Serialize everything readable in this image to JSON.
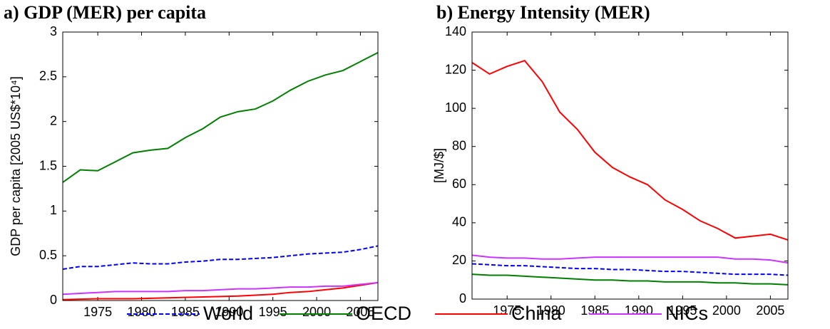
{
  "chart_data": [
    {
      "type": "line",
      "title": "a) GDP (MER) per capita",
      "ylabel": "GDP per capita [2005 US$*10⁴]",
      "x": [
        1971,
        1973,
        1975,
        1977,
        1979,
        1981,
        1983,
        1985,
        1987,
        1989,
        1991,
        1993,
        1995,
        1997,
        1999,
        2001,
        2003,
        2005,
        2007
      ],
      "xlim": [
        1971,
        2007
      ],
      "xticks": [
        1975,
        1980,
        1985,
        1990,
        1995,
        2000,
        2005
      ],
      "ylim": [
        0,
        3
      ],
      "yticks": [
        0,
        0.5,
        1,
        1.5,
        2,
        2.5,
        3
      ],
      "series": [
        {
          "name": "World",
          "color": "#0000ff",
          "linestyle": "dashed",
          "values": [
            0.35,
            0.38,
            0.38,
            0.4,
            0.42,
            0.41,
            0.41,
            0.43,
            0.44,
            0.46,
            0.46,
            0.47,
            0.48,
            0.5,
            0.52,
            0.53,
            0.54,
            0.57,
            0.61
          ]
        },
        {
          "name": "OECD",
          "color": "#008000",
          "linestyle": "solid",
          "values": [
            1.32,
            1.46,
            1.45,
            1.55,
            1.65,
            1.68,
            1.7,
            1.82,
            1.92,
            2.05,
            2.11,
            2.14,
            2.23,
            2.35,
            2.45,
            2.52,
            2.57,
            2.67,
            2.77
          ]
        },
        {
          "name": "China",
          "color": "#ff0000",
          "linestyle": "solid",
          "values": [
            0.01,
            0.015,
            0.02,
            0.02,
            0.02,
            0.025,
            0.03,
            0.035,
            0.04,
            0.045,
            0.05,
            0.06,
            0.07,
            0.09,
            0.1,
            0.12,
            0.14,
            0.17,
            0.2
          ]
        },
        {
          "name": "NICs",
          "color": "#cc33ff",
          "linestyle": "solid",
          "values": [
            0.07,
            0.08,
            0.09,
            0.1,
            0.1,
            0.1,
            0.1,
            0.11,
            0.11,
            0.12,
            0.13,
            0.13,
            0.14,
            0.15,
            0.15,
            0.16,
            0.16,
            0.18,
            0.2
          ]
        }
      ]
    },
    {
      "type": "line",
      "title": "b) Energy Intensity (MER)",
      "ylabel": "[MJ/$]",
      "x": [
        1971,
        1973,
        1975,
        1977,
        1979,
        1981,
        1983,
        1985,
        1987,
        1989,
        1991,
        1993,
        1995,
        1997,
        1999,
        2001,
        2003,
        2005,
        2007
      ],
      "xlim": [
        1971,
        2007
      ],
      "xticks": [
        1975,
        1980,
        1985,
        1990,
        1995,
        2000,
        2005
      ],
      "ylim": [
        0,
        140
      ],
      "yticks": [
        0,
        20,
        40,
        60,
        80,
        100,
        120,
        140
      ],
      "series": [
        {
          "name": "World",
          "color": "#0000ff",
          "linestyle": "dashed",
          "values": [
            18.5,
            18,
            17.5,
            17.5,
            17,
            16.5,
            16,
            16,
            15.5,
            15.5,
            15,
            14.5,
            14.5,
            14,
            13.5,
            13,
            13,
            13,
            12.5
          ]
        },
        {
          "name": "OECD",
          "color": "#008000",
          "linestyle": "solid",
          "values": [
            13,
            12.5,
            12.5,
            12,
            11.5,
            11,
            10.5,
            10,
            10,
            9.5,
            9.5,
            9,
            9,
            9,
            8.5,
            8.5,
            8,
            8,
            7.5
          ]
        },
        {
          "name": "China",
          "color": "#ff0000",
          "linestyle": "solid",
          "values": [
            124,
            118,
            122,
            125,
            114,
            98,
            89,
            77,
            69,
            64,
            60,
            52,
            47,
            41,
            37,
            32,
            33,
            34,
            31
          ]
        },
        {
          "name": "NICs",
          "color": "#cc33ff",
          "linestyle": "solid",
          "values": [
            23,
            22,
            21.5,
            21.5,
            21,
            21,
            21.5,
            22,
            22,
            22,
            22,
            22,
            22,
            22,
            22,
            21,
            21,
            20.5,
            19
          ]
        }
      ]
    }
  ]
}
